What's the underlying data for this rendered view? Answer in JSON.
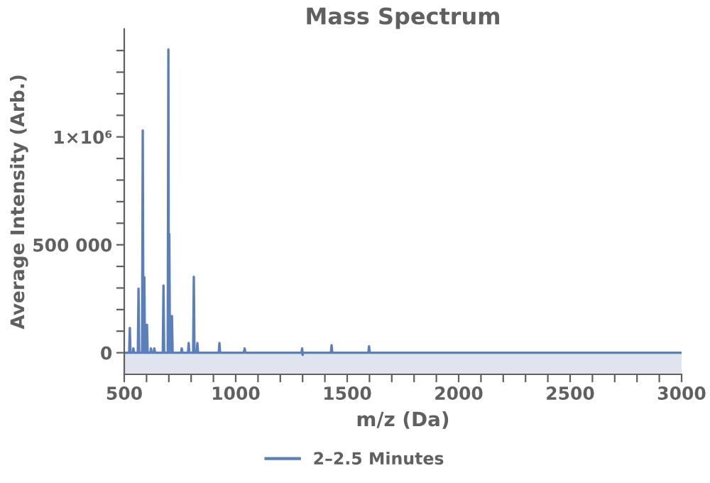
{
  "chart_data": {
    "type": "area",
    "title": "Mass Spectrum",
    "xlabel": "m/z (Da)",
    "ylabel": "Average Intensity (Arb.)",
    "xlim": [
      500,
      3000
    ],
    "xticks": [
      500,
      {
        "value": 600,
        "label": null
      },
      {
        "value": 700,
        "label": null
      },
      {
        "value": 800,
        "label": null
      },
      {
        "value": 900,
        "label": null
      },
      1000,
      {
        "value": 1100,
        "label": null
      },
      {
        "value": 1200,
        "label": null
      },
      {
        "value": 1300,
        "label": null
      },
      {
        "value": 1400,
        "label": null
      },
      1500,
      {
        "value": 1600,
        "label": null
      },
      {
        "value": 1700,
        "label": null
      },
      {
        "value": 1800,
        "label": null
      },
      {
        "value": 1900,
        "label": null
      },
      2000,
      {
        "value": 2100,
        "label": null
      },
      {
        "value": 2200,
        "label": null
      },
      {
        "value": 2300,
        "label": null
      },
      {
        "value": 2400,
        "label": null
      },
      2500,
      {
        "value": 2600,
        "label": null
      },
      {
        "value": 2700,
        "label": null
      },
      {
        "value": 2800,
        "label": null
      },
      {
        "value": 2900,
        "label": null
      },
      3000
    ],
    "ylim": [
      -100000,
      1500000
    ],
    "yticks": [
      0,
      {
        "value": 100000,
        "label": null
      },
      {
        "value": 200000,
        "label": null
      },
      {
        "value": 300000,
        "label": null
      },
      {
        "value": 400000,
        "label": null
      },
      {
        "value": 500000,
        "label": "500 000"
      },
      {
        "value": 600000,
        "label": null
      },
      {
        "value": 700000,
        "label": null
      },
      {
        "value": 800000,
        "label": null
      },
      {
        "value": 900000,
        "label": null
      },
      {
        "value": 1000000,
        "label": "1×10⁶"
      },
      {
        "value": 1100000,
        "label": null
      },
      {
        "value": 1200000,
        "label": null
      },
      {
        "value": 1300000,
        "label": null
      },
      {
        "value": 1400000,
        "label": null
      }
    ],
    "bands": [
      {
        "axis": "y",
        "from": -100000,
        "to": 0,
        "color": "#dfe4ee"
      }
    ],
    "legend": "bottom",
    "grid": false,
    "marker": "none",
    "line_style": "solid",
    "series": [
      {
        "name": "2–2.5 Minutes",
        "color": "#5b7fb8",
        "x": [
          500,
          522,
          525,
          528,
          538,
          541,
          544,
          561,
          564,
          567,
          580,
          583,
          586,
          590,
          593,
          599,
          602,
          605,
          617,
          620,
          623,
          632,
          635,
          638,
          673,
          676,
          679,
          695,
          698,
          700,
          702,
          705,
          711,
          714,
          717,
          755,
          758,
          761,
          786,
          789,
          792,
          809,
          812,
          815,
          825,
          828,
          831,
          924,
          927,
          930,
          1037,
          1040,
          1043,
          1295,
          1298,
          1300,
          1303,
          1427,
          1430,
          1433,
          1595,
          1598,
          1601,
          3000
        ],
        "values": [
          0,
          0,
          115000,
          0,
          0,
          20000,
          0,
          0,
          297000,
          0,
          0,
          1030000,
          0,
          350000,
          0,
          0,
          130000,
          0,
          0,
          20000,
          0,
          0,
          20000,
          0,
          0,
          312000,
          0,
          0,
          1405000,
          0,
          550000,
          0,
          0,
          170000,
          0,
          0,
          20000,
          0,
          0,
          45000,
          0,
          0,
          352000,
          0,
          0,
          45000,
          0,
          0,
          45000,
          0,
          0,
          20000,
          0,
          0,
          20000,
          -10000,
          0,
          0,
          35000,
          0,
          0,
          30000,
          0,
          0
        ]
      }
    ]
  }
}
